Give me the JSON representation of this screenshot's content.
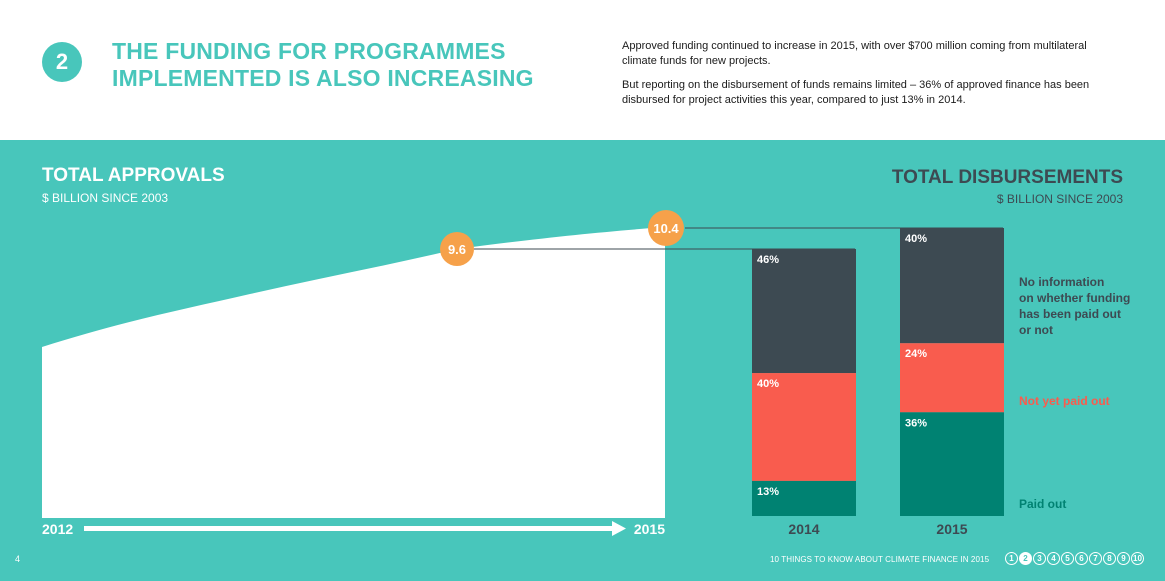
{
  "header": {
    "number": "2",
    "headline_line1": "THE FUNDING FOR PROGRAMMES",
    "headline_line2": "IMPLEMENTED IS ALSO INCREASING",
    "paragraph1": "Approved funding continued to increase in 2015, with over $700 million coming from multilateral climate funds for new projects.",
    "paragraph2": "But reporting on the disbursement of funds remains limited – 36% of approved finance has been disbursed for project activities this year, compared to just 13% in 2014."
  },
  "colors": {
    "teal": "#48c6bb",
    "dark": "#3d4a52",
    "coral": "#f95c4e",
    "green": "#008272",
    "orange": "#f6a14a"
  },
  "chart_data": [
    {
      "type": "area",
      "title": "TOTAL APPROVALS",
      "subtitle": "$ BILLION SINCE 2003",
      "x_start_label": "2012",
      "x_end_label": "2015",
      "labeled_points": [
        {
          "x": "2014",
          "value": 9.6,
          "label": "9.6"
        },
        {
          "x": "2015",
          "value": 10.4,
          "label": "10.4"
        }
      ]
    },
    {
      "type": "bar",
      "stacked": true,
      "title": "TOTAL DISBURSEMENTS",
      "subtitle": "$ BILLION SINCE 2003",
      "categories": [
        "2014",
        "2015"
      ],
      "series": [
        {
          "name": "No information on whether funding has been paid out or not",
          "color": "#3d4a52",
          "values": [
            46,
            40
          ],
          "labels": [
            "46%",
            "40%"
          ]
        },
        {
          "name": "Not yet paid out",
          "color": "#f95c4e",
          "values": [
            40,
            24
          ],
          "labels": [
            "40%",
            "24%"
          ]
        },
        {
          "name": "Paid out",
          "color": "#008272",
          "values": [
            13,
            36
          ],
          "labels": [
            "13%",
            "36%"
          ]
        }
      ],
      "legend": [
        "No information",
        "on whether funding",
        "has been paid out",
        "or not"
      ],
      "legend_not_paid": "Not yet paid out",
      "legend_paid": "Paid out"
    }
  ],
  "footer": {
    "page_number": "4",
    "title": "10 THINGS TO KNOW ABOUT CLIMATE FINANCE IN 2015",
    "pages": [
      "1",
      "2",
      "3",
      "4",
      "5",
      "6",
      "7",
      "8",
      "9",
      "10"
    ],
    "active_page": "2"
  }
}
